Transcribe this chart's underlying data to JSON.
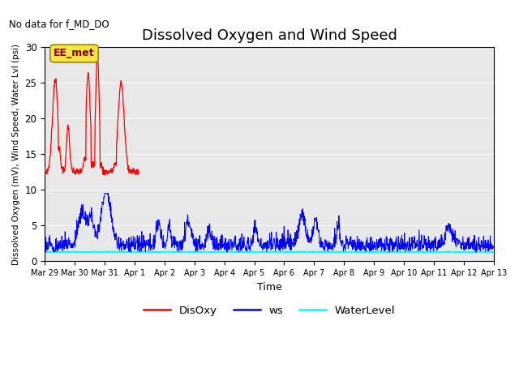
{
  "title": "Dissolved Oxygen and Wind Speed",
  "no_data_text": "No data for f_MD_DO",
  "legend_label_text": "EE_met",
  "xlabel": "Time",
  "ylabel": "Dissolved Oxygen (mV), Wind Speed, Water Lvl (psi)",
  "ylim": [
    0,
    30
  ],
  "yticks": [
    0,
    5,
    10,
    15,
    20,
    25,
    30
  ],
  "background_color": "#e8e8e8",
  "legend_entries": [
    "DisOxy",
    "ws",
    "WaterLevel"
  ],
  "title_fontsize": 13,
  "axis_fontsize": 9,
  "tick_fontsize": 8.5,
  "xtick_positions": [
    0,
    1,
    2,
    3,
    4,
    5,
    6,
    7,
    8,
    9,
    10,
    11,
    12,
    13,
    14,
    15
  ],
  "xtick_labels": [
    "Mar 29",
    "Mar 30",
    "Mar 31",
    "Apr 1",
    "Apr 2",
    "Apr 3",
    "Apr 4",
    "Apr 5",
    "Apr 6",
    "Apr 7",
    "Apr 8",
    "Apr 9",
    "Apr 10",
    "Apr 11",
    "Apr 12",
    "Apr 13"
  ]
}
